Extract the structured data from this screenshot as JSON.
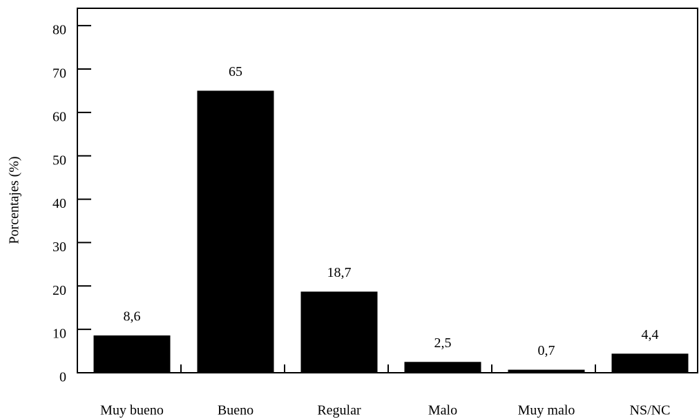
{
  "chart_data": {
    "type": "bar",
    "y_label": "Porcentajes (%)",
    "categories": [
      "Muy bueno",
      "Bueno",
      "Regular",
      "Malo",
      "Muy malo",
      "NS/NC"
    ],
    "values": [
      8.6,
      65,
      18.7,
      2.5,
      0.7,
      4.4
    ],
    "value_labels": [
      "8,6",
      "65",
      "18,7",
      "2,5",
      "0,7",
      "4,4"
    ],
    "color": "#000000",
    "ylim": [
      0,
      84
    ],
    "yticks": [
      0,
      10,
      20,
      30,
      40,
      50,
      60,
      70,
      80
    ],
    "grid": false
  }
}
